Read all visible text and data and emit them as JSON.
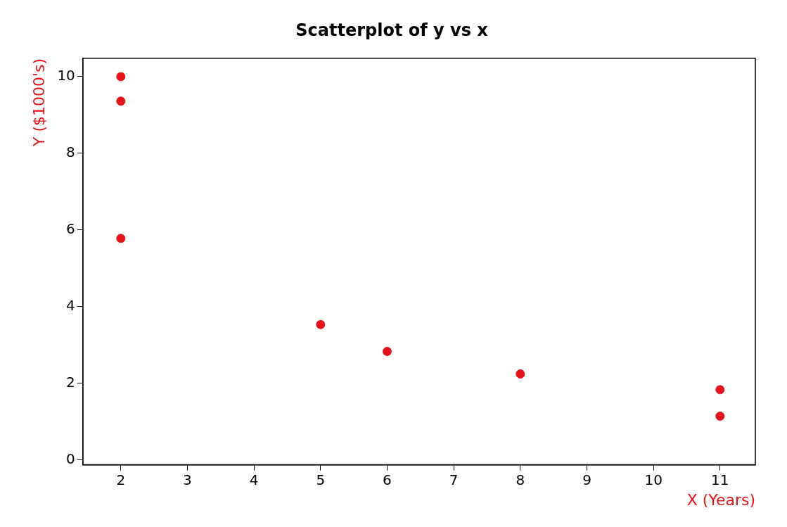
{
  "chart_data": {
    "type": "scatter",
    "title": "Scatterplot of y vs x",
    "xlabel": "X (Years)",
    "ylabel": "Y ($1000's)",
    "series": [
      {
        "color": "#e3131b",
        "x": [
          2,
          2,
          2,
          5,
          6,
          8,
          11,
          11
        ],
        "values": [
          10,
          9.36,
          5.78,
          3.53,
          2.83,
          2.24,
          1.83,
          1.14
        ]
      }
    ],
    "xlim": [
      1.43,
      11.53
    ],
    "xticks": [
      2,
      3,
      4,
      5,
      6,
      7,
      8,
      9,
      10,
      11
    ],
    "ylim": [
      -0.13,
      10.48
    ],
    "yticks": [
      0,
      2,
      4,
      6,
      8,
      10
    ],
    "grid": false,
    "legend": false,
    "marker": "circle"
  }
}
